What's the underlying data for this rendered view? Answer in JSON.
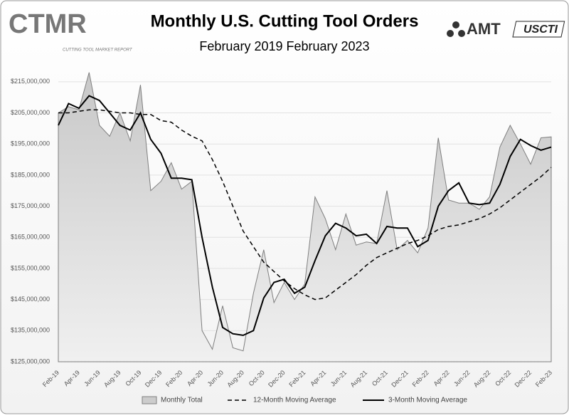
{
  "logos": {
    "ctmr": "CTMR",
    "ctmr_sub": "CUTTING TOOL MARKET REPORT",
    "amt": "AMT",
    "uscti": "USCTI"
  },
  "chart_data": {
    "type": "line",
    "title": "Monthly U.S. Cutting Tool Orders",
    "subtitle": "February 2019 February 2023",
    "categories": [
      "Feb-19",
      null,
      "Apr-19",
      null,
      "Jun-19",
      null,
      "Aug-19",
      null,
      "Oct-19",
      null,
      "Dec-19",
      null,
      "Feb-20",
      null,
      "Apr-20",
      null,
      "Jun-20",
      null,
      "Aug-20",
      null,
      "Oct-20",
      null,
      "Dec-20",
      null,
      "Feb-21",
      null,
      "Apr-21",
      null,
      "Jun-21",
      null,
      "Aug-21",
      null,
      "Oct-21",
      null,
      "Dec-21",
      null,
      "Feb-22",
      null,
      "Apr-22",
      null,
      "Jun-22",
      null,
      "Aug-22",
      null,
      "Oct-22",
      null,
      "Dec-22",
      null,
      "Feb-23"
    ],
    "series": [
      {
        "name": "Monthly Total",
        "color": "#7f7f7f",
        "fill": true,
        "dashed": false,
        "values": [
          205000000,
          207000000,
          206000000,
          218000000,
          201000000,
          197500000,
          205000000,
          196000000,
          214000000,
          180000000,
          183000000,
          189000000,
          180500000,
          183000000,
          135000000,
          129000000,
          143000000,
          129500000,
          128500000,
          147000000,
          161000000,
          144000000,
          150500000,
          145000000,
          150000000,
          178000000,
          171000000,
          161000000,
          172500000,
          162500000,
          163500000,
          163000000,
          180000000,
          161000000,
          164000000,
          160000000,
          168000000,
          197000000,
          177000000,
          176000000,
          176000000,
          174000000,
          178000000,
          194000000,
          201000000,
          195000000,
          188500000,
          197000000,
          197300000
        ]
      },
      {
        "name": "12-Month Moving Average",
        "color": "#000000",
        "fill": false,
        "dashed": true,
        "values": [
          205000000,
          205000000,
          205500000,
          206000000,
          206000000,
          205500000,
          205000000,
          205000000,
          204500000,
          204500000,
          202500000,
          202000000,
          199500000,
          197500000,
          196000000,
          190000000,
          183000000,
          175000000,
          167000000,
          162000000,
          157000000,
          154000000,
          151000000,
          148500000,
          146500000,
          145000000,
          145500000,
          148000000,
          150500000,
          153000000,
          156000000,
          158500000,
          160000000,
          161500000,
          163000000,
          164000000,
          165500000,
          167500000,
          168500000,
          169000000,
          170000000,
          171000000,
          172500000,
          174500000,
          177000000,
          179500000,
          182000000,
          184500000,
          187500000
        ]
      },
      {
        "name": "3-Month Moving Average",
        "color": "#000000",
        "fill": false,
        "dashed": false,
        "values": [
          201000000,
          208000000,
          206500000,
          210500000,
          209000000,
          205000000,
          201000000,
          199500000,
          205000000,
          196500000,
          192000000,
          184000000,
          184000000,
          183500000,
          165000000,
          149000000,
          136000000,
          134000000,
          133500000,
          135000000,
          145500000,
          150500000,
          151500000,
          147000000,
          149000000,
          157500000,
          165500000,
          169500000,
          168000000,
          165500000,
          166000000,
          163000000,
          168500000,
          168000000,
          168000000,
          162000000,
          164000000,
          175000000,
          180000000,
          182500000,
          176000000,
          175500000,
          176000000,
          182000000,
          191000000,
          196500000,
          194500000,
          193000000,
          194000000
        ]
      }
    ],
    "ylim": [
      125000000,
      220000000
    ],
    "yticks": [
      {
        "value": 125000000,
        "label": "$125,000,000"
      },
      {
        "value": 135000000,
        "label": "$135,000,000"
      },
      {
        "value": 145000000,
        "label": "$145,000,000"
      },
      {
        "value": 155000000,
        "label": "$155,000,000"
      },
      {
        "value": 165000000,
        "label": "$165,000,000"
      },
      {
        "value": 175000000,
        "label": "$175,000,000"
      },
      {
        "value": 185000000,
        "label": "$185,000,000"
      },
      {
        "value": 195000000,
        "label": "$195,000,000"
      },
      {
        "value": 205000000,
        "label": "$205,000,000"
      },
      {
        "value": 215000000,
        "label": "$215,000,000"
      }
    ],
    "grid": true,
    "legend": "bottom"
  }
}
